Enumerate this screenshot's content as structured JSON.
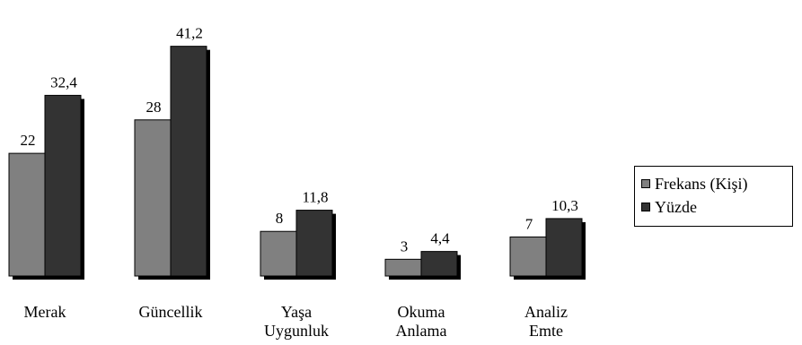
{
  "chart_data": {
    "type": "bar",
    "title": "",
    "xlabel": "",
    "ylabel": "",
    "ylim": [
      0,
      45
    ],
    "grid": false,
    "legend_position": "right",
    "categories": [
      [
        "Merak"
      ],
      [
        "Güncellik"
      ],
      [
        "Yaşa",
        "Uygunluk"
      ],
      [
        "Okuma",
        "Anlama"
      ],
      [
        "Analiz",
        "Emte"
      ]
    ],
    "series": [
      {
        "name": "Frekans (Kişi)",
        "values": [
          22,
          28,
          8,
          3,
          7
        ],
        "labels": [
          "22",
          "28",
          "8",
          "3",
          "7"
        ],
        "color": "#808080"
      },
      {
        "name": "Yüzde",
        "values": [
          32.4,
          41.2,
          11.8,
          4.4,
          10.3
        ],
        "labels": [
          "32,4",
          "41,2",
          "11,8",
          "4,4",
          "10,3"
        ],
        "color": "#333333"
      }
    ],
    "shadow_color": "#000000"
  }
}
